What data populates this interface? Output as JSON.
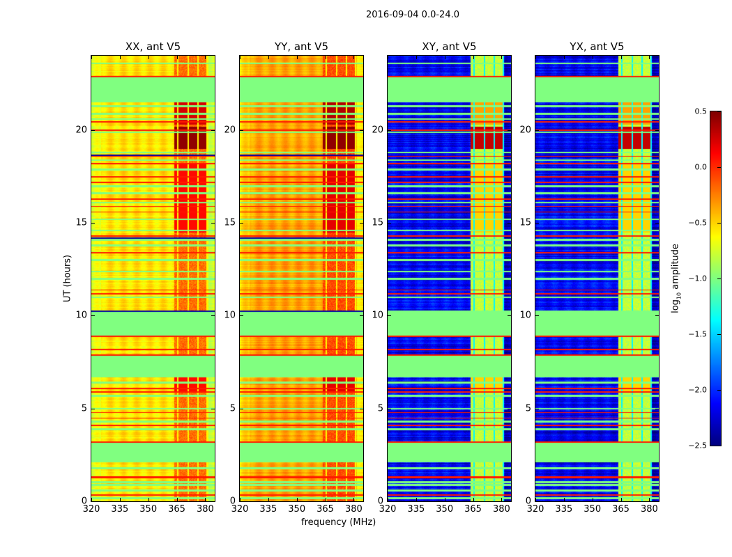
{
  "chart_data": {
    "type": "heatmap",
    "title": "2016-09-04 0.0-24.0",
    "xlabel": "frequency (MHz)",
    "ylabel": "UT (hours)",
    "xlim": [
      320,
      385
    ],
    "ylim": [
      0,
      24
    ],
    "xticks": [
      "320",
      "335",
      "350",
      "365",
      "380"
    ],
    "xtick_values": [
      320,
      335,
      350,
      365,
      380
    ],
    "yticks": [
      "0",
      "5",
      "10",
      "15",
      "20"
    ],
    "ytick_values": [
      0,
      5,
      10,
      15,
      20
    ],
    "panels": [
      {
        "name": "XX",
        "title": "XX, ant V5",
        "base": -0.55,
        "band": -0.2,
        "peak": 0.45
      },
      {
        "name": "YY",
        "title": "YY, ant V5",
        "base": -0.35,
        "band": -0.1,
        "peak": 0.45
      },
      {
        "name": "XY",
        "title": "XY, ant V5",
        "base": -2.15,
        "band": -0.8,
        "peak": 0.3
      },
      {
        "name": "YX",
        "title": "YX, ant V5",
        "base": -2.15,
        "band": -0.8,
        "peak": 0.3
      }
    ],
    "rfi_band_mhz": [
      363.5,
      381
    ],
    "masked_hours": [
      [
        21.5,
        22.9
      ],
      [
        8.9,
        10.3
      ],
      [
        6.7,
        7.9
      ],
      [
        2.1,
        3.2
      ]
    ],
    "thin_masked_hours": [
      23.6,
      21.3,
      20.9,
      20.6,
      19.9,
      18.8,
      18.4,
      17.9,
      17.0,
      16.6,
      16.1,
      15.2,
      14.6,
      14.1,
      13.8,
      13.0,
      12.4,
      12.0,
      11.0,
      6.4,
      5.7,
      5.0,
      4.3,
      3.9,
      1.8,
      1.05,
      0.9,
      0.6,
      0.2
    ],
    "flagged_hours": [
      22.9,
      20.45,
      20.0,
      18.6,
      18.2,
      17.5,
      17.2,
      16.3,
      15.9,
      15.6,
      14.3,
      13.4,
      11.4,
      11.2,
      8.9,
      8.2,
      7.9,
      6.1,
      5.9,
      4.8,
      4.5,
      4.1,
      3.2,
      1.35,
      1.3,
      0.35
    ],
    "dark_hours": [
      18.65,
      14.2,
      10.25
    ],
    "colorbar": {
      "label": "log10 amplitude",
      "label_main": "log",
      "label_sub": "10",
      "label_rest": " amplitude",
      "range": [
        -2.5,
        0.5
      ],
      "colormap": "jet",
      "ticks": [
        "0.5",
        "0.0",
        "−0.5",
        "−1.0",
        "−1.5",
        "−2.0",
        "−2.5"
      ],
      "tick_values": [
        0.5,
        0.0,
        -0.5,
        -1.0,
        -1.5,
        -2.0,
        -2.5
      ]
    }
  }
}
